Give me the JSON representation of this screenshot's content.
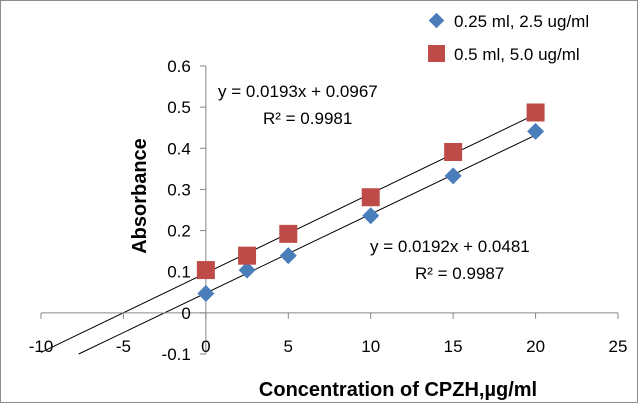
{
  "chart_data": {
    "type": "scatter",
    "xlabel": "Concentration of CPZH,µg/ml",
    "ylabel": "Absorbance",
    "xlim": [
      -10,
      25
    ],
    "ylim": [
      -0.1,
      0.6
    ],
    "x_ticks": [
      "-10",
      "-5",
      "0",
      "5",
      "10",
      "15",
      "20",
      "25"
    ],
    "y_ticks": [
      "-0.1",
      "0",
      "0.1",
      "0.2",
      "0.3",
      "0.4",
      "0.5",
      "0.6"
    ],
    "grid": false,
    "legend_position": "top-right",
    "series": [
      {
        "name": "0.25 ml, 2.5 ug/ml",
        "marker": "diamond",
        "color": "#4a7ebb",
        "x": [
          0,
          2.5,
          5,
          10,
          15,
          20
        ],
        "y": [
          0.047,
          0.104,
          0.139,
          0.236,
          0.333,
          0.441
        ],
        "trendline": {
          "slope": 0.0192,
          "intercept": 0.0481,
          "equation": "y = 0.0192x + 0.0481",
          "r2": "R² = 0.9987"
        }
      },
      {
        "name": "0.5 ml, 5.0 ug/ml",
        "marker": "square",
        "color": "#be4b48",
        "x": [
          0,
          2.5,
          5,
          10,
          15,
          20
        ],
        "y": [
          0.104,
          0.139,
          0.192,
          0.281,
          0.391,
          0.487
        ],
        "trendline": {
          "slope": 0.0193,
          "intercept": 0.0967,
          "equation": "y = 0.0193x + 0.0967",
          "r2": "R² = 0.9981"
        }
      }
    ]
  }
}
